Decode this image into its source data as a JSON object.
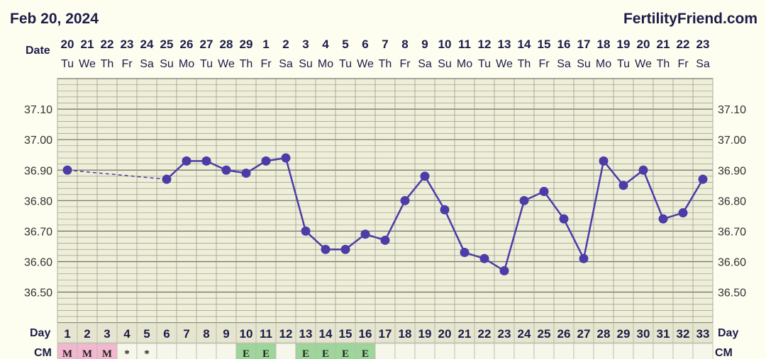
{
  "header": {
    "date": "Feb 20, 2024",
    "brand": "FertilityFriend.com"
  },
  "labels": {
    "date_row": "Date",
    "day_row": "Day",
    "cm_row": "CM"
  },
  "colors": {
    "line": "#4b3ca8",
    "grid": "#9a9a90",
    "plot_bg": "#efefd9",
    "menses": "#f2b8cf",
    "egg_white": "#9ed59a"
  },
  "chart_data": {
    "type": "line",
    "dates": [
      "20",
      "21",
      "22",
      "23",
      "24",
      "25",
      "26",
      "27",
      "28",
      "29",
      "1",
      "2",
      "3",
      "4",
      "5",
      "6",
      "7",
      "8",
      "9",
      "10",
      "11",
      "12",
      "13",
      "14",
      "15",
      "16",
      "17",
      "18",
      "19",
      "20",
      "21",
      "22",
      "23"
    ],
    "weekdays": [
      "Tu",
      "We",
      "Th",
      "Fr",
      "Sa",
      "Su",
      "Mo",
      "Tu",
      "We",
      "Th",
      "Fr",
      "Sa",
      "Su",
      "Mo",
      "Tu",
      "We",
      "Th",
      "Fr",
      "Sa",
      "Su",
      "Mo",
      "Tu",
      "We",
      "Th",
      "Fr",
      "Sa",
      "Su",
      "Mo",
      "Tu",
      "We",
      "Th",
      "Fr",
      "Sa"
    ],
    "days": [
      "1",
      "2",
      "3",
      "4",
      "5",
      "6",
      "7",
      "8",
      "9",
      "10",
      "11",
      "12",
      "13",
      "14",
      "15",
      "16",
      "17",
      "18",
      "19",
      "20",
      "21",
      "22",
      "23",
      "24",
      "25",
      "26",
      "27",
      "28",
      "29",
      "30",
      "31",
      "32",
      "33"
    ],
    "temperatures": [
      36.9,
      null,
      null,
      null,
      null,
      36.87,
      36.93,
      36.93,
      36.9,
      36.89,
      36.93,
      36.94,
      36.7,
      36.64,
      36.64,
      36.69,
      36.67,
      36.8,
      36.88,
      36.77,
      36.63,
      36.61,
      36.57,
      36.8,
      36.83,
      36.74,
      36.61,
      36.93,
      36.85,
      36.9,
      36.74,
      36.76,
      36.87
    ],
    "cervical_mucus": [
      "M",
      "M",
      "M",
      "*",
      "*",
      "",
      "",
      "",
      "",
      "E",
      "E",
      "",
      "E",
      "E",
      "E",
      "E",
      "",
      "",
      "",
      "",
      "",
      "",
      "",
      "",
      "",
      "",
      "",
      "",
      "",
      "",
      "",
      "",
      ""
    ],
    "yticks": [
      "37.10",
      "37.00",
      "36.90",
      "36.80",
      "36.70",
      "36.60",
      "36.50"
    ],
    "ylim": [
      36.4,
      37.2
    ]
  }
}
